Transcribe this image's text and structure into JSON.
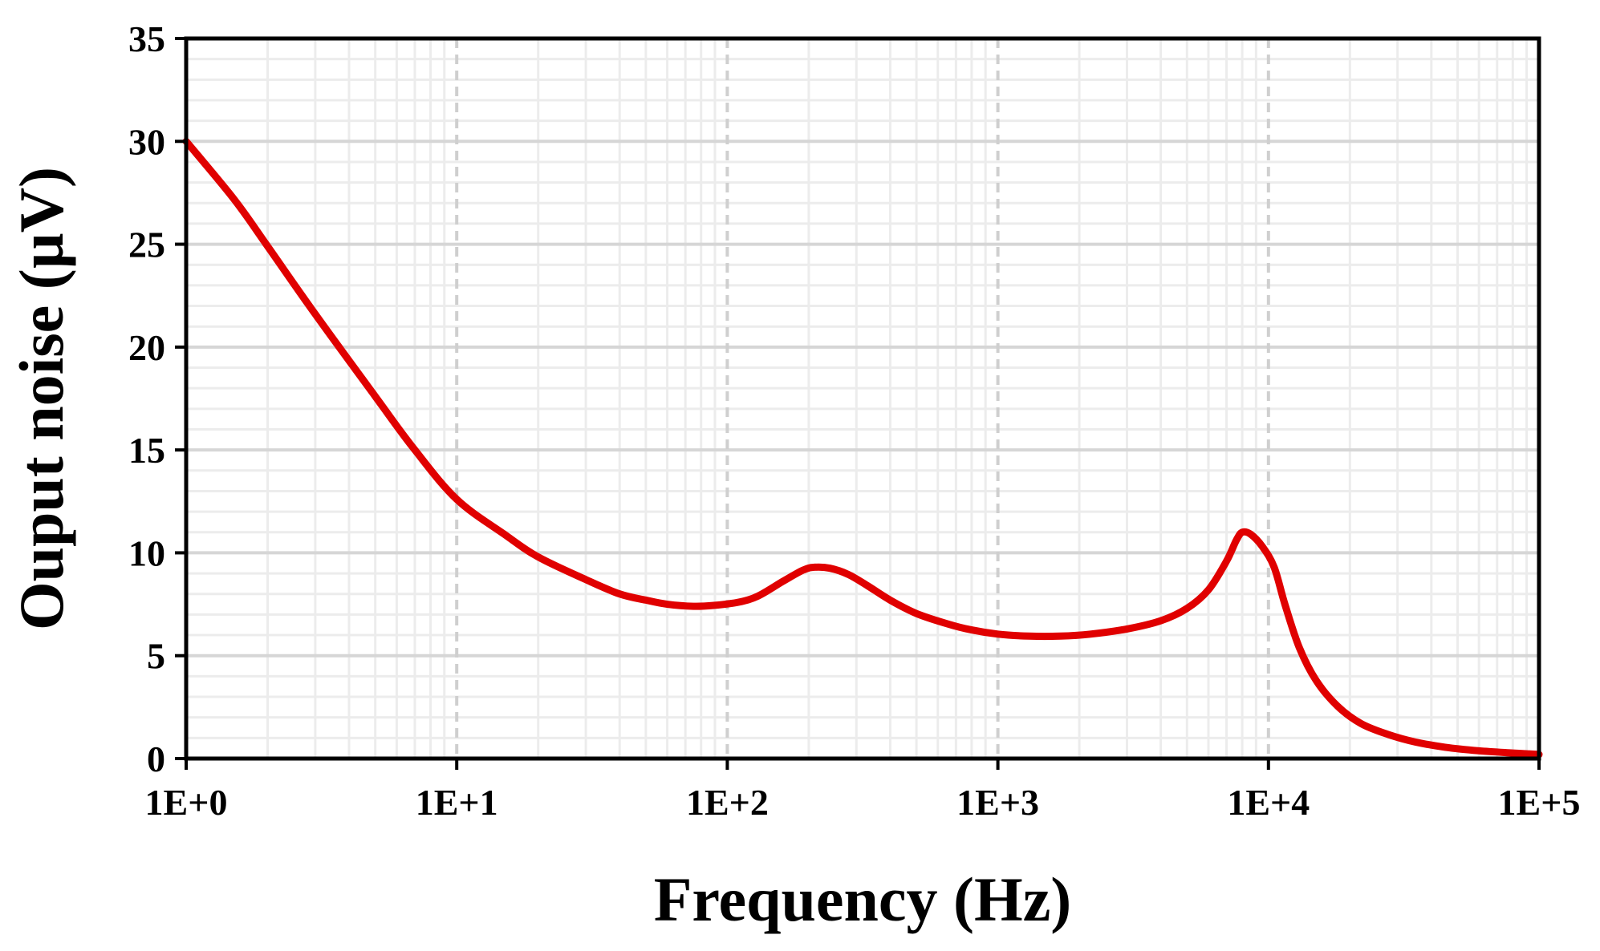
{
  "chart_data": {
    "type": "line",
    "title": "",
    "xlabel": "Frequency (Hz)",
    "ylabel": "Ouput noise (µV)",
    "x_scale": "log",
    "xlim": [
      1,
      100000
    ],
    "ylim": [
      0,
      35
    ],
    "x_ticks": [
      1,
      10,
      100,
      1000,
      10000,
      100000
    ],
    "x_tick_labels": [
      "1E+0",
      "1E+1",
      "1E+2",
      "1E+3",
      "1E+4",
      "1E+5"
    ],
    "y_ticks": [
      0,
      5,
      10,
      15,
      20,
      25,
      30,
      35
    ],
    "y_tick_labels": [
      "0",
      "5",
      "10",
      "15",
      "20",
      "25",
      "30",
      "35"
    ],
    "grid": true,
    "legend": "none",
    "series": [
      {
        "color": "#e00000",
        "points": [
          [
            1,
            30.0
          ],
          [
            1.5,
            27.2
          ],
          [
            2,
            24.9
          ],
          [
            3,
            21.6
          ],
          [
            5,
            17.6
          ],
          [
            7,
            15.0
          ],
          [
            10,
            12.6
          ],
          [
            15,
            10.9
          ],
          [
            20,
            9.8
          ],
          [
            30,
            8.7
          ],
          [
            40,
            8.0
          ],
          [
            50,
            7.7
          ],
          [
            60,
            7.5
          ],
          [
            75,
            7.4
          ],
          [
            90,
            7.45
          ],
          [
            110,
            7.6
          ],
          [
            130,
            7.9
          ],
          [
            160,
            8.6
          ],
          [
            190,
            9.15
          ],
          [
            210,
            9.3
          ],
          [
            240,
            9.25
          ],
          [
            280,
            8.95
          ],
          [
            330,
            8.4
          ],
          [
            400,
            7.7
          ],
          [
            500,
            7.05
          ],
          [
            650,
            6.55
          ],
          [
            800,
            6.25
          ],
          [
            1000,
            6.05
          ],
          [
            1300,
            5.95
          ],
          [
            1700,
            5.95
          ],
          [
            2200,
            6.05
          ],
          [
            3000,
            6.3
          ],
          [
            4000,
            6.7
          ],
          [
            5000,
            7.3
          ],
          [
            6000,
            8.2
          ],
          [
            7000,
            9.6
          ],
          [
            7600,
            10.6
          ],
          [
            8000,
            11.0
          ],
          [
            8600,
            10.9
          ],
          [
            9500,
            10.3
          ],
          [
            10500,
            9.3
          ],
          [
            11500,
            7.5
          ],
          [
            13000,
            5.4
          ],
          [
            15000,
            3.8
          ],
          [
            18000,
            2.55
          ],
          [
            22000,
            1.7
          ],
          [
            28000,
            1.15
          ],
          [
            35000,
            0.8
          ],
          [
            45000,
            0.55
          ],
          [
            60000,
            0.38
          ],
          [
            80000,
            0.27
          ],
          [
            100000,
            0.2
          ]
        ]
      }
    ]
  }
}
